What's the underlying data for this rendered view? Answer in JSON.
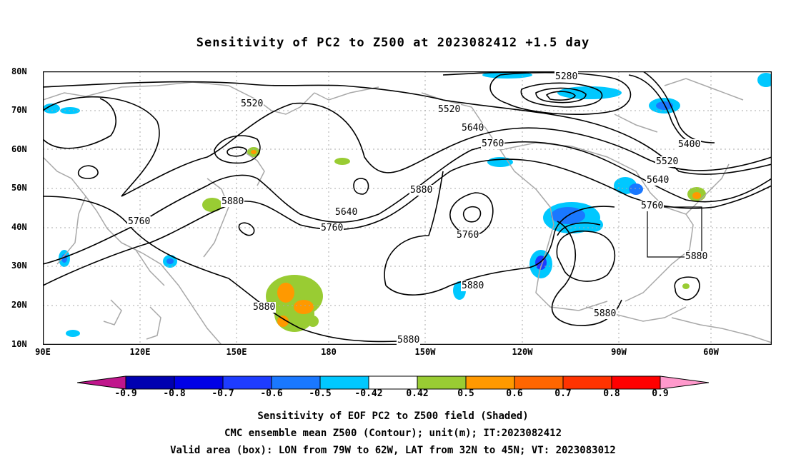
{
  "title": "Sensitivity of PC2 to Z500 at 2023082412 +1.5 day",
  "lat_labels": [
    "80N",
    "70N",
    "60N",
    "50N",
    "40N",
    "30N",
    "20N",
    "10N"
  ],
  "lon_labels": [
    "90E",
    "120E",
    "150E",
    "180",
    "150W",
    "120W",
    "90W",
    "60W"
  ],
  "contour_labels": [
    "5280",
    "5520",
    "5520",
    "5400",
    "5520",
    "5640",
    "5640",
    "5760",
    "5760",
    "5880",
    "5880",
    "5640",
    "5760",
    "5760",
    "5880",
    "5880",
    "5880",
    "5880",
    "5880"
  ],
  "colorbar": {
    "labels": [
      "-0.9",
      "-0.8",
      "-0.7",
      "-0.6",
      "-0.5",
      "-0.42",
      "0.42",
      "0.5",
      "0.6",
      "0.7",
      "0.8",
      "0.9"
    ],
    "colors": [
      "#c0168c",
      "#0000b0",
      "#0000e6",
      "#1e3cff",
      "#1a78ff",
      "#00c8ff",
      "#ffffff",
      "#99cc33",
      "#ff9900",
      "#ff6600",
      "#ff3300",
      "#ff0000",
      "#ff99cc"
    ]
  },
  "footer": {
    "line1": "Sensitivity of EOF PC2 to Z500 field (Shaded)",
    "line2": "CMC ensemble mean Z500 (Contour); unit(m); IT:2023082412",
    "line3": "Valid area (box): LON from 79W to 62W, LAT from 32N to 45N; VT: 2023083012"
  }
}
